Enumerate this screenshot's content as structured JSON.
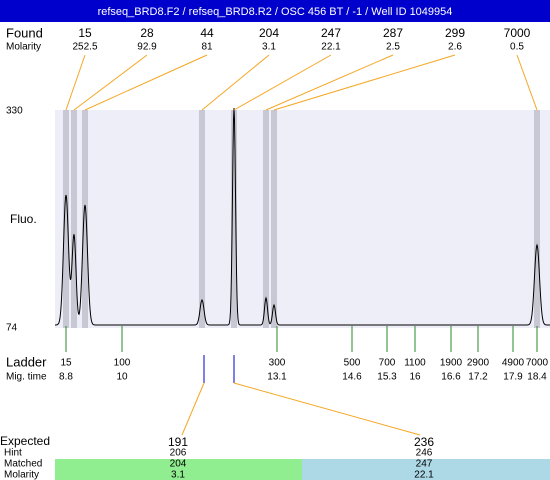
{
  "header": {
    "title": "refseq_BRD8.F2 / refseq_BRD8.R2 / OSC 456 BT / -1 / Well ID 1049954"
  },
  "found": {
    "label": "Found",
    "molarity_label": "Molarity",
    "peaks": [
      {
        "size": "15",
        "molarity": "252.5"
      },
      {
        "size": "28",
        "molarity": "92.9"
      },
      {
        "size": "44",
        "molarity": "81"
      },
      {
        "size": "204",
        "molarity": "3.1"
      },
      {
        "size": "247",
        "molarity": "22.1"
      },
      {
        "size": "287",
        "molarity": "2.5"
      },
      {
        "size": "299",
        "molarity": "2.6"
      },
      {
        "size": "7000",
        "molarity": "0.5"
      }
    ]
  },
  "plot": {
    "y_max_label": "330",
    "y_min_label": "74",
    "y_axis_label": "Fluo."
  },
  "ladder": {
    "label": "Ladder",
    "time_label": "Mig. time",
    "entries": [
      {
        "size": "15",
        "time": "8.8"
      },
      {
        "size": "100",
        "time": "10"
      },
      {
        "size": "300",
        "time": "13.1"
      },
      {
        "size": "500",
        "time": "14.6"
      },
      {
        "size": "700",
        "time": "15.3"
      },
      {
        "size": "1100",
        "time": "16"
      },
      {
        "size": "1900",
        "time": "16.6"
      },
      {
        "size": "2900",
        "time": "17.2"
      },
      {
        "size": "4900",
        "time": "17.9"
      },
      {
        "size": "7000",
        "time": "18.4"
      }
    ]
  },
  "expected": {
    "label": "Expected",
    "hint_label": "Hint",
    "matched_label": "Matched",
    "molarity_label": "Molarity",
    "columns": [
      {
        "expected": "191",
        "hint": "206",
        "matched": "204",
        "molarity": "3.1"
      },
      {
        "expected": "236",
        "hint": "246",
        "matched": "247",
        "molarity": "22.1"
      }
    ]
  }
}
